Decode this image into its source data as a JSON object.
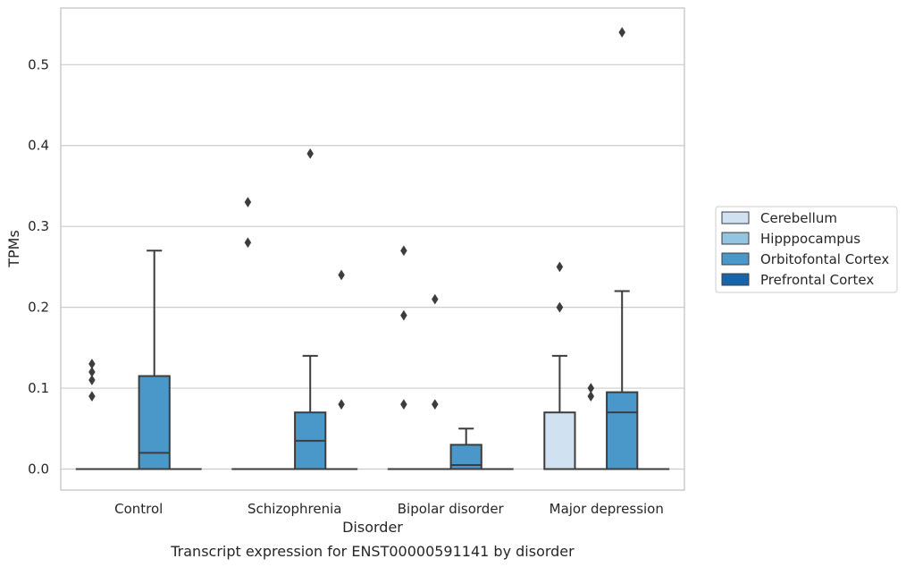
{
  "chart_data": {
    "type": "box",
    "xlabel": "Disorder",
    "ylabel": "TPMs",
    "caption": "Transcript expression for ENST00000591141 by disorder",
    "ylim": [
      -0.026,
      0.57
    ],
    "yticks": [
      0.0,
      0.1,
      0.2,
      0.3,
      0.4,
      0.5
    ],
    "ytick_labels": [
      "0.0",
      "0.1",
      "0.2",
      "0.3",
      "0.4",
      "0.5"
    ],
    "grid": "horizontal",
    "legend_position": "right",
    "categories": [
      "Control",
      "Schizophrenia",
      "Bipolar disorder",
      "Major depression"
    ],
    "series": [
      {
        "name": "Cerebellum",
        "color": "#d0e1f2",
        "boxes": [
          {
            "q1": 0,
            "median": 0,
            "q3": 0,
            "whisker_low": 0,
            "whisker_high": 0,
            "outliers": [
              0.09,
              0.11,
              0.12,
              0.13
            ]
          },
          {
            "q1": 0,
            "median": 0,
            "q3": 0,
            "whisker_low": 0,
            "whisker_high": 0,
            "outliers": [
              0.28,
              0.33
            ]
          },
          {
            "q1": 0,
            "median": 0,
            "q3": 0,
            "whisker_low": 0,
            "whisker_high": 0,
            "outliers": [
              0.08,
              0.19,
              0.27
            ]
          },
          {
            "q1": 0,
            "median": 0,
            "q3": 0.07,
            "whisker_low": 0,
            "whisker_high": 0.14,
            "outliers": [
              0.2,
              0.2,
              0.25
            ]
          }
        ]
      },
      {
        "name": "Hipppocampus",
        "color": "#94c4df",
        "boxes": [
          {
            "q1": 0,
            "median": 0,
            "q3": 0,
            "whisker_low": 0,
            "whisker_high": 0,
            "outliers": []
          },
          {
            "q1": 0,
            "median": 0,
            "q3": 0,
            "whisker_low": 0,
            "whisker_high": 0,
            "outliers": []
          },
          {
            "q1": 0,
            "median": 0,
            "q3": 0,
            "whisker_low": 0,
            "whisker_high": 0,
            "outliers": [
              0.08,
              0.21
            ]
          },
          {
            "q1": 0,
            "median": 0,
            "q3": 0,
            "whisker_low": 0,
            "whisker_high": 0,
            "outliers": [
              0.09,
              0.1
            ]
          }
        ]
      },
      {
        "name": "Orbitofontal Cortex",
        "color": "#4a98c9",
        "boxes": [
          {
            "q1": 0,
            "median": 0.02,
            "q3": 0.115,
            "whisker_low": 0,
            "whisker_high": 0.27,
            "outliers": []
          },
          {
            "q1": 0,
            "median": 0.035,
            "q3": 0.07,
            "whisker_low": 0,
            "whisker_high": 0.14,
            "outliers": [
              0.39
            ]
          },
          {
            "q1": 0,
            "median": 0.005,
            "q3": 0.03,
            "whisker_low": 0,
            "whisker_high": 0.05,
            "outliers": []
          },
          {
            "q1": 0,
            "median": 0.07,
            "q3": 0.095,
            "whisker_low": 0,
            "whisker_high": 0.22,
            "outliers": [
              0.54
            ]
          }
        ]
      },
      {
        "name": "Prefrontal Cortex",
        "color": "#1764ab",
        "boxes": [
          {
            "q1": 0,
            "median": 0,
            "q3": 0,
            "whisker_low": 0,
            "whisker_high": 0,
            "outliers": []
          },
          {
            "q1": 0,
            "median": 0,
            "q3": 0,
            "whisker_low": 0,
            "whisker_high": 0,
            "outliers": [
              0.08,
              0.24
            ]
          },
          {
            "q1": 0,
            "median": 0,
            "q3": 0,
            "whisker_low": 0,
            "whisker_high": 0,
            "outliers": []
          },
          {
            "q1": 0,
            "median": 0,
            "q3": 0,
            "whisker_low": 0,
            "whisker_high": 0,
            "outliers": []
          }
        ]
      }
    ]
  }
}
